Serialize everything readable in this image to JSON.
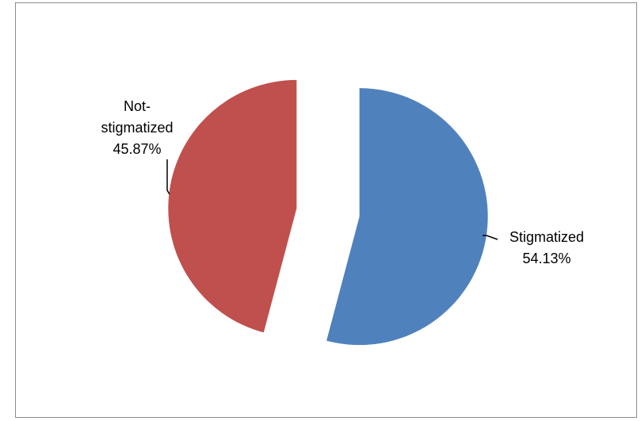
{
  "chart_data": {
    "type": "pie",
    "title": "",
    "slices": [
      {
        "category": "Stigmatized",
        "value": 54.13,
        "percent_label": "54.13%",
        "color": "#4f81bd"
      },
      {
        "category_lines": [
          "Not-",
          "stigmatized"
        ],
        "category": "Not-stigmatized",
        "value": 45.87,
        "percent_label": "45.87%",
        "color": "#c0504d"
      }
    ],
    "exploded": true,
    "legend": "none"
  }
}
